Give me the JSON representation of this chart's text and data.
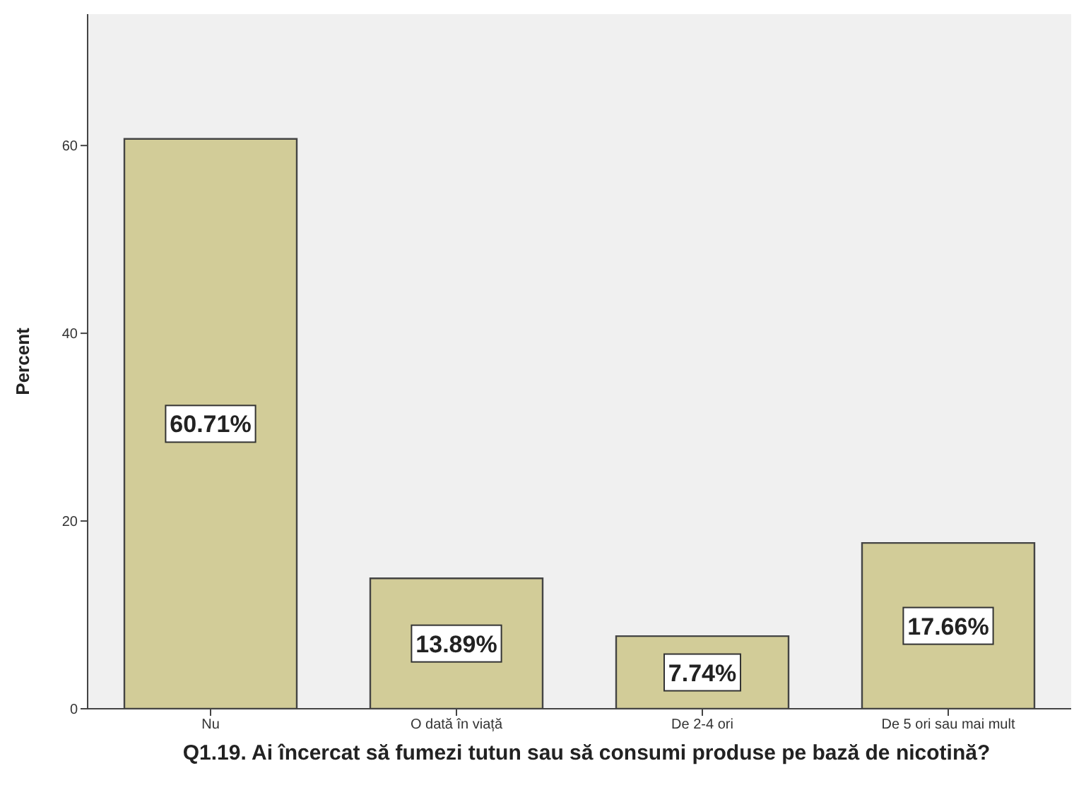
{
  "chart_data": {
    "type": "bar",
    "xlabel": "Q1.19. Ai încercat să fumezi tutun sau să consumi produse pe bază de nicotină?",
    "ylabel": "Percent",
    "categories": [
      "Nu",
      "O dată în viață",
      "De 2-4 ori",
      "De 5 ori sau mai mult"
    ],
    "values": [
      60.71,
      13.89,
      7.74,
      17.66
    ],
    "color": "#d2cc98",
    "value_labels": [
      "60.71%",
      "13.89%",
      "7.74%",
      "17.66%"
    ],
    "ylim": [
      0,
      74
    ],
    "yticks": [
      0,
      20,
      40,
      60
    ],
    "grid": false
  }
}
